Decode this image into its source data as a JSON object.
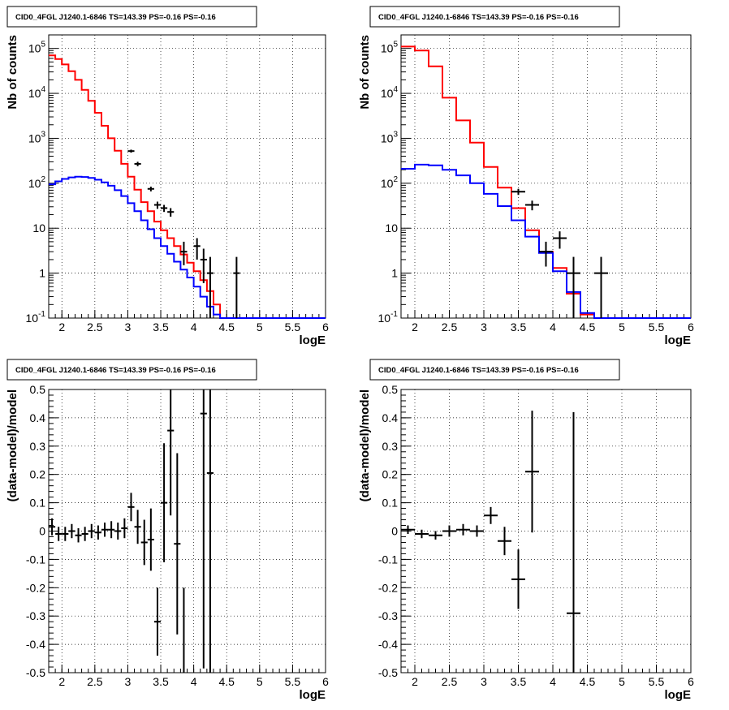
{
  "chart_data": [
    {
      "type": "histogram",
      "title": "CID0_4FGL J1240.1-6846 TS=143.39 PS=-0.16 PS=-0.16",
      "xlabel": "logE",
      "ylabel": "Nb of counts",
      "yscale": "log",
      "xlim": [
        1.8,
        6.0
      ],
      "ylim": [
        0.1,
        200000
      ],
      "x_ticks": [
        "2",
        "2.5",
        "3",
        "3.5",
        "4",
        "4.5",
        "5",
        "5.5",
        "6"
      ],
      "y_ticks": [
        {
          "base": "10",
          "exp": "-1",
          "value": 0.1
        },
        {
          "base": "1",
          "exp": "",
          "value": 1
        },
        {
          "base": "10",
          "exp": "",
          "value": 10
        },
        {
          "base": "10",
          "exp": "2",
          "value": 100
        },
        {
          "base": "10",
          "exp": "3",
          "value": 1000
        },
        {
          "base": "10",
          "exp": "4",
          "value": 10000
        },
        {
          "base": "10",
          "exp": "5",
          "value": 100000
        }
      ],
      "grid": true,
      "bin_edges": [
        1.8,
        1.9,
        2.0,
        2.1,
        2.2,
        2.3,
        2.4,
        2.5,
        2.6,
        2.7,
        2.8,
        2.9,
        3.0,
        3.1,
        3.2,
        3.3,
        3.4,
        3.5,
        3.6,
        3.7,
        3.8,
        3.9,
        4.0,
        4.1,
        4.2,
        4.3,
        4.4,
        4.5,
        4.6,
        4.7,
        4.8,
        4.9,
        5.0,
        5.1,
        5.2,
        5.3,
        5.4,
        5.5,
        5.6,
        5.7,
        5.8,
        5.9,
        6.0
      ],
      "series": [
        {
          "color": "#ff0000",
          "values": [
            70000,
            58000,
            44000,
            31000,
            20000,
            12000,
            6800,
            3700,
            1900,
            1000,
            530,
            270,
            140,
            72,
            38,
            24,
            14,
            9,
            6,
            4,
            2.6,
            1.7,
            1.1,
            0.7,
            0.4,
            0.2,
            0.1,
            0.1,
            0.1,
            0.1,
            0.1,
            0.1,
            0.1,
            0.1,
            0.1,
            0.1,
            0.1,
            0.1,
            0.1,
            0.1,
            0.1,
            0.1
          ]
        },
        {
          "color": "#0000ff",
          "values": [
            95,
            110,
            125,
            135,
            140,
            138,
            132,
            120,
            105,
            88,
            70,
            52,
            36,
            24,
            15,
            9.5,
            6,
            4,
            2.7,
            1.8,
            1.2,
            0.8,
            0.5,
            0.3,
            0.18,
            0.12,
            0.1,
            0.1,
            0.1,
            0.1,
            0.1,
            0.1,
            0.1,
            0.1,
            0.1,
            0.1,
            0.1,
            0.1,
            0.1,
            0.1,
            0.1,
            0.1
          ]
        }
      ],
      "points": [
        {
          "x": 3.05,
          "y": 520,
          "xerr": 0.05,
          "ylo": 480,
          "yhi": 560
        },
        {
          "x": 3.15,
          "y": 270,
          "xerr": 0.05,
          "ylo": 240,
          "yhi": 300
        },
        {
          "x": 3.35,
          "y": 75,
          "xerr": 0.05,
          "ylo": 66,
          "yhi": 84
        },
        {
          "x": 3.45,
          "y": 33,
          "xerr": 0.05,
          "ylo": 27,
          "yhi": 39
        },
        {
          "x": 3.55,
          "y": 28,
          "xerr": 0.05,
          "ylo": 23,
          "yhi": 33
        },
        {
          "x": 3.65,
          "y": 23,
          "xerr": 0.05,
          "ylo": 18,
          "yhi": 28
        },
        {
          "x": 3.85,
          "y": 3,
          "xerr": 0.05,
          "ylo": 1.5,
          "yhi": 5
        },
        {
          "x": 4.05,
          "y": 4,
          "xerr": 0.05,
          "ylo": 2,
          "yhi": 6
        },
        {
          "x": 4.15,
          "y": 2,
          "xerr": 0.05,
          "ylo": 0.6,
          "yhi": 3.5
        },
        {
          "x": 4.25,
          "y": 1,
          "xerr": 0.05,
          "ylo": 0.1,
          "yhi": 2.3
        },
        {
          "x": 4.65,
          "y": 1,
          "xerr": 0.05,
          "ylo": 0.1,
          "yhi": 2.3
        }
      ]
    },
    {
      "type": "histogram",
      "title": "CID0_4FGL J1240.1-6846 TS=143.39 PS=-0.16 PS=-0.16",
      "xlabel": "logE",
      "ylabel": "Nb of counts",
      "yscale": "log",
      "xlim": [
        1.8,
        6.0
      ],
      "ylim": [
        0.1,
        200000
      ],
      "x_ticks": [
        "2",
        "2.5",
        "3",
        "3.5",
        "4",
        "4.5",
        "5",
        "5.5",
        "6"
      ],
      "y_ticks": [
        {
          "base": "10",
          "exp": "-1",
          "value": 0.1
        },
        {
          "base": "1",
          "exp": "",
          "value": 1
        },
        {
          "base": "10",
          "exp": "",
          "value": 10
        },
        {
          "base": "10",
          "exp": "2",
          "value": 100
        },
        {
          "base": "10",
          "exp": "3",
          "value": 1000
        },
        {
          "base": "10",
          "exp": "4",
          "value": 10000
        },
        {
          "base": "10",
          "exp": "5",
          "value": 100000
        }
      ],
      "grid": true,
      "bin_edges": [
        1.8,
        2.0,
        2.2,
        2.4,
        2.6,
        2.8,
        3.0,
        3.2,
        3.4,
        3.6,
        3.8,
        4.0,
        4.2,
        4.4,
        4.6,
        4.8,
        5.0,
        5.2,
        5.4,
        5.6,
        5.8,
        6.0
      ],
      "series": [
        {
          "color": "#ff0000",
          "values": [
            110000,
            90000,
            40000,
            8000,
            2500,
            800,
            230,
            80,
            28,
            9,
            3,
            1.3,
            0.35,
            0.12,
            0.1,
            0.1,
            0.1,
            0.1,
            0.1,
            0.1,
            0.1
          ]
        },
        {
          "color": "#0000ff",
          "values": [
            210,
            260,
            250,
            200,
            150,
            100,
            58,
            31,
            15,
            6.5,
            2.8,
            1.1,
            0.38,
            0.13,
            0.1,
            0.1,
            0.1,
            0.1,
            0.1,
            0.1,
            0.1
          ]
        }
      ],
      "points": [
        {
          "x": 3.5,
          "y": 65,
          "xerr": 0.1,
          "ylo": 55,
          "yhi": 75
        },
        {
          "x": 3.7,
          "y": 33,
          "xerr": 0.1,
          "ylo": 25,
          "yhi": 41
        },
        {
          "x": 3.9,
          "y": 3,
          "xerr": 0.1,
          "ylo": 1.4,
          "yhi": 5
        },
        {
          "x": 4.1,
          "y": 6,
          "xerr": 0.1,
          "ylo": 3.5,
          "yhi": 8.5
        },
        {
          "x": 4.3,
          "y": 1,
          "xerr": 0.1,
          "ylo": 0.1,
          "yhi": 2.3
        },
        {
          "x": 4.7,
          "y": 1,
          "xerr": 0.1,
          "ylo": 0.1,
          "yhi": 2.3
        }
      ]
    },
    {
      "type": "scatter",
      "title": "CID0_4FGL J1240.1-6846 TS=143.39 PS=-0.16 PS=-0.16",
      "xlabel": "logE",
      "ylabel": "(data-model)/model",
      "xlim": [
        1.8,
        6.0
      ],
      "ylim": [
        -0.5,
        0.5
      ],
      "x_ticks": [
        "2",
        "2.5",
        "3",
        "3.5",
        "4",
        "4.5",
        "5",
        "5.5",
        "6"
      ],
      "y_ticks": [
        "-0.5",
        "-0.4",
        "-0.3",
        "-0.2",
        "-0.1",
        "0",
        "0.1",
        "0.2",
        "0.3",
        "0.4",
        "0.5"
      ],
      "grid": true,
      "points": [
        {
          "x": 1.85,
          "y": 0.015,
          "xerr": 0.05,
          "err": 0.03
        },
        {
          "x": 1.95,
          "y": -0.01,
          "xerr": 0.05,
          "err": 0.025
        },
        {
          "x": 2.05,
          "y": -0.01,
          "xerr": 0.05,
          "err": 0.025
        },
        {
          "x": 2.15,
          "y": 0.0,
          "xerr": 0.05,
          "err": 0.025
        },
        {
          "x": 2.25,
          "y": -0.015,
          "xerr": 0.05,
          "err": 0.025
        },
        {
          "x": 2.35,
          "y": -0.01,
          "xerr": 0.05,
          "err": 0.025
        },
        {
          "x": 2.45,
          "y": 0.0,
          "xerr": 0.05,
          "err": 0.025
        },
        {
          "x": 2.55,
          "y": -0.005,
          "xerr": 0.05,
          "err": 0.025
        },
        {
          "x": 2.65,
          "y": 0.005,
          "xerr": 0.05,
          "err": 0.025
        },
        {
          "x": 2.75,
          "y": 0.005,
          "xerr": 0.05,
          "err": 0.03
        },
        {
          "x": 2.85,
          "y": 0.0,
          "xerr": 0.05,
          "err": 0.03
        },
        {
          "x": 2.95,
          "y": 0.01,
          "xerr": 0.05,
          "err": 0.035
        },
        {
          "x": 3.05,
          "y": 0.085,
          "xerr": 0.05,
          "err": 0.05
        },
        {
          "x": 3.15,
          "y": 0.015,
          "xerr": 0.05,
          "err": 0.06
        },
        {
          "x": 3.25,
          "y": -0.04,
          "xerr": 0.05,
          "err": 0.08
        },
        {
          "x": 3.35,
          "y": -0.03,
          "xerr": 0.05,
          "err": 0.11
        },
        {
          "x": 3.45,
          "y": -0.32,
          "xerr": 0.05,
          "err": 0.12
        },
        {
          "x": 3.55,
          "y": 0.1,
          "xerr": 0.05,
          "err": 0.21
        },
        {
          "x": 3.65,
          "y": 0.355,
          "xerr": 0.05,
          "err": 0.3
        },
        {
          "x": 3.75,
          "y": -0.045,
          "xerr": 0.05,
          "err": 0.32
        },
        {
          "x": 3.85,
          "y": -0.55,
          "xerr": 0.05,
          "err": 0.35
        },
        {
          "x": 4.15,
          "y": 0.415,
          "xerr": 0.05,
          "err": 0.9
        },
        {
          "x": 4.25,
          "y": 0.205,
          "xerr": 0.05,
          "err": 1.0
        }
      ]
    },
    {
      "type": "scatter",
      "title": "CID0_4FGL J1240.1-6846 TS=143.39 PS=-0.16 PS=-0.16",
      "xlabel": "logE",
      "ylabel": "(data-model)/model",
      "xlim": [
        1.8,
        6.0
      ],
      "ylim": [
        -0.5,
        0.5
      ],
      "x_ticks": [
        "2",
        "2.5",
        "3",
        "3.5",
        "4",
        "4.5",
        "5",
        "5.5",
        "6"
      ],
      "y_ticks": [
        "-0.5",
        "-0.4",
        "-0.3",
        "-0.2",
        "-0.1",
        "0",
        "0.1",
        "0.2",
        "0.3",
        "0.4",
        "0.5"
      ],
      "grid": true,
      "points": [
        {
          "x": 1.9,
          "y": 0.005,
          "xerr": 0.1,
          "err": 0.015
        },
        {
          "x": 2.1,
          "y": -0.01,
          "xerr": 0.1,
          "err": 0.015
        },
        {
          "x": 2.3,
          "y": -0.015,
          "xerr": 0.1,
          "err": 0.015
        },
        {
          "x": 2.5,
          "y": 0.0,
          "xerr": 0.1,
          "err": 0.02
        },
        {
          "x": 2.7,
          "y": 0.005,
          "xerr": 0.1,
          "err": 0.02
        },
        {
          "x": 2.9,
          "y": 0.0,
          "xerr": 0.1,
          "err": 0.02
        },
        {
          "x": 3.1,
          "y": 0.055,
          "xerr": 0.1,
          "err": 0.03
        },
        {
          "x": 3.3,
          "y": -0.035,
          "xerr": 0.1,
          "err": 0.05
        },
        {
          "x": 3.5,
          "y": -0.17,
          "xerr": 0.1,
          "err": 0.105
        },
        {
          "x": 3.7,
          "y": 0.21,
          "xerr": 0.1,
          "err": 0.215
        },
        {
          "x": 4.3,
          "y": -0.29,
          "xerr": 0.1,
          "err": 0.71
        }
      ]
    }
  ]
}
